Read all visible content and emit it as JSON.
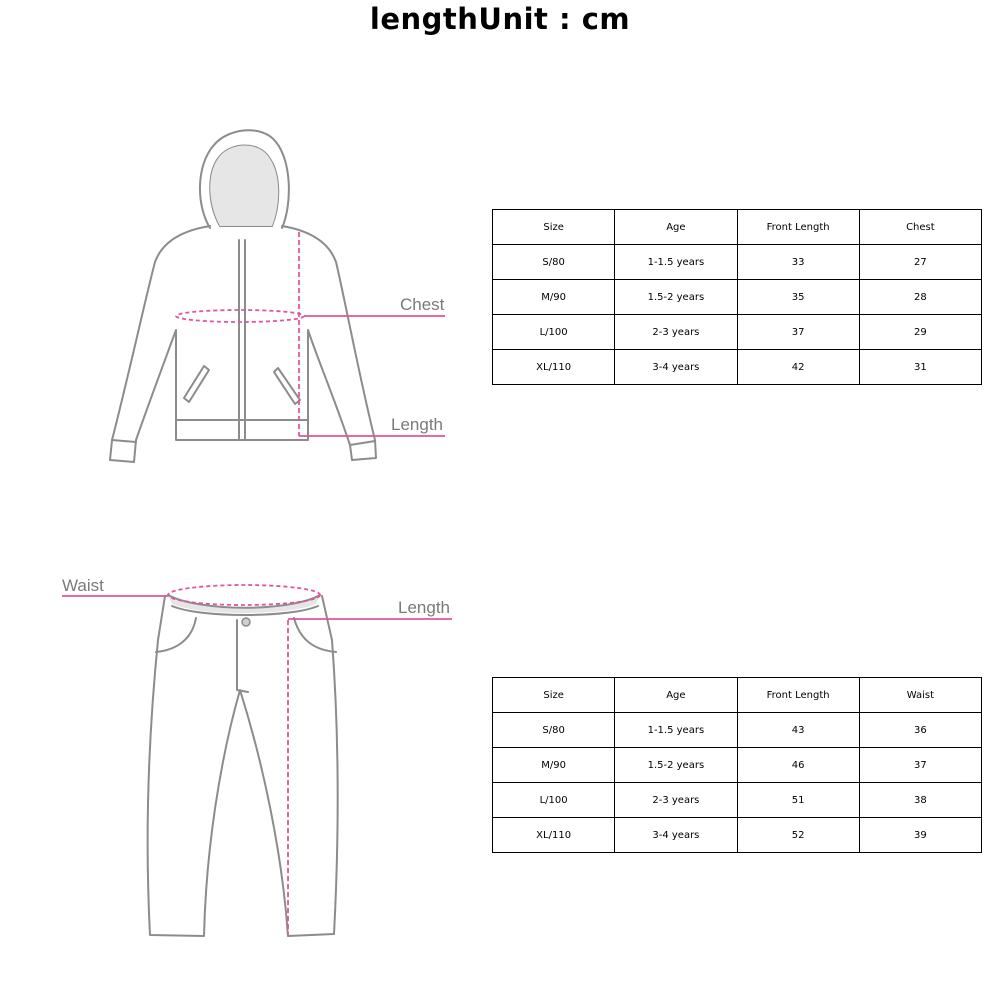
{
  "title": "lengthUnit : cm",
  "jacket": {
    "labels": {
      "chest": "Chest",
      "length": "Length"
    },
    "table": {
      "headers": [
        "Size",
        "Age",
        "Front Length",
        "Chest"
      ],
      "rows": [
        [
          "S/80",
          "1-1.5 years",
          "33",
          "27"
        ],
        [
          "M/90",
          "1.5-2 years",
          "35",
          "28"
        ],
        [
          "L/100",
          "2-3 years",
          "37",
          "29"
        ],
        [
          "XL/110",
          "3-4 years",
          "42",
          "31"
        ]
      ]
    }
  },
  "pants": {
    "labels": {
      "waist": "Waist",
      "length": "Length"
    },
    "table": {
      "headers": [
        "Size",
        "Age",
        "Front Length",
        "Waist"
      ],
      "rows": [
        [
          "S/80",
          "1-1.5 years",
          "43",
          "36"
        ],
        [
          "M/90",
          "1.5-2 years",
          "46",
          "37"
        ],
        [
          "L/100",
          "2-3 years",
          "51",
          "38"
        ],
        [
          "XL/110",
          "3-4 years",
          "52",
          "39"
        ]
      ]
    }
  },
  "colors": {
    "measure_line": "#e0559d",
    "garment_outline": "#8c8c8c",
    "hood_fill": "#e6e6e6"
  }
}
